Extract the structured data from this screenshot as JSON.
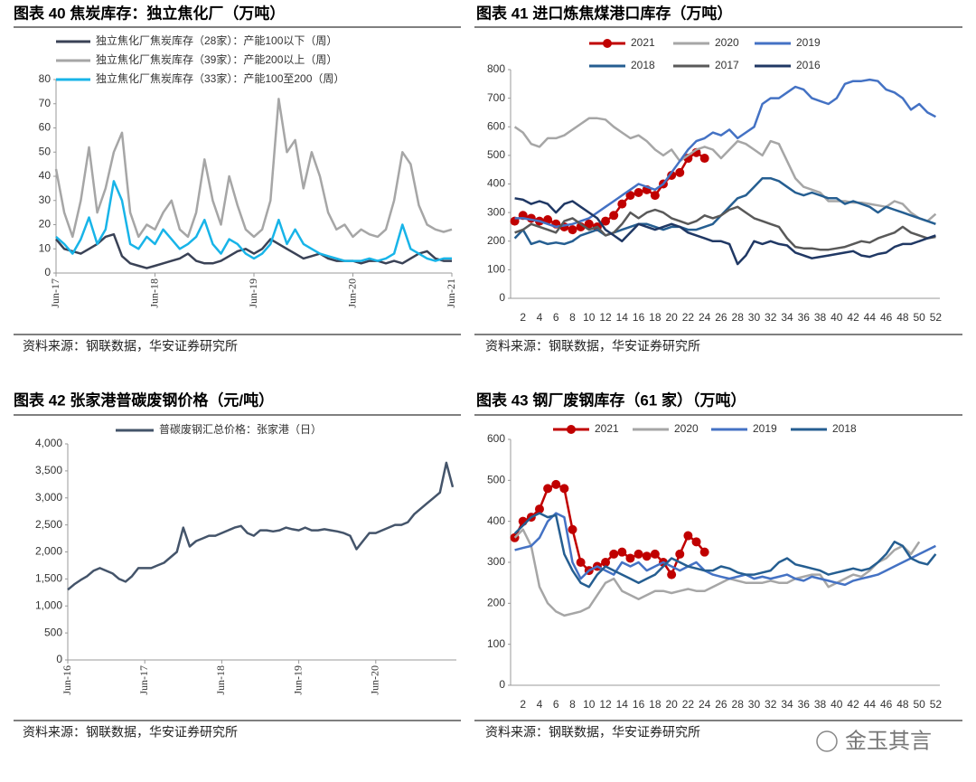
{
  "chart_data": [
    {
      "type": "line",
      "title": "图表 40 焦炭库存：独立焦化厂（万吨）",
      "source": "资料来源：钢联数据，华安证券研究所",
      "categories": [
        "Jun-17",
        null,
        null,
        null,
        null,
        null,
        null,
        null,
        null,
        null,
        null,
        null,
        "Jun-18",
        null,
        null,
        null,
        null,
        null,
        null,
        null,
        null,
        null,
        null,
        null,
        "Jun-19",
        null,
        null,
        null,
        null,
        null,
        null,
        null,
        null,
        null,
        null,
        null,
        "Jun-20",
        null,
        null,
        null,
        null,
        null,
        null,
        null,
        null,
        null,
        null,
        null,
        "Jun-21"
      ],
      "series": [
        {
          "name": "独立焦化厂焦炭库存（28家）：产能100以下（周）",
          "color": "#3a4256",
          "values": [
            14,
            10,
            9,
            8,
            10,
            12,
            15,
            16,
            7,
            4,
            3,
            2,
            3,
            4,
            5,
            6,
            8,
            5,
            4,
            4,
            5,
            7,
            9,
            10,
            8,
            10,
            14,
            12,
            10,
            8,
            6,
            7,
            8,
            6,
            5,
            5,
            5,
            4,
            5,
            5,
            4,
            5,
            4,
            6,
            8,
            9,
            6,
            5,
            5
          ]
        },
        {
          "name": "独立焦化厂焦炭库存（39家）：产能200以上（周）",
          "color": "#a6a6a6",
          "values": [
            43,
            25,
            15,
            30,
            52,
            25,
            35,
            50,
            58,
            25,
            15,
            20,
            18,
            25,
            30,
            18,
            15,
            25,
            47,
            30,
            20,
            40,
            28,
            18,
            15,
            18,
            30,
            72,
            50,
            55,
            35,
            50,
            40,
            25,
            18,
            20,
            15,
            18,
            16,
            15,
            18,
            30,
            50,
            45,
            28,
            20,
            18,
            17,
            18
          ]
        },
        {
          "name": "独立焦化厂焦炭库存（33家）：产能100至200（周）",
          "color": "#18b4e8",
          "values": [
            15,
            12,
            8,
            14,
            23,
            12,
            18,
            38,
            30,
            12,
            10,
            15,
            12,
            18,
            14,
            10,
            12,
            15,
            22,
            12,
            8,
            14,
            12,
            8,
            6,
            8,
            12,
            22,
            12,
            18,
            12,
            10,
            8,
            7,
            6,
            5,
            5,
            5,
            6,
            5,
            6,
            8,
            20,
            10,
            8,
            6,
            5,
            6,
            6
          ]
        }
      ],
      "ylim": [
        0,
        80
      ],
      "yticks": [
        0,
        10,
        20,
        30,
        40,
        50,
        60,
        70,
        80
      ]
    },
    {
      "type": "line",
      "title": "图表 41 进口炼焦煤港口库存（万吨）",
      "source": "资料来源：钢联数据，华安证券研究所",
      "categories": [
        null,
        2,
        null,
        4,
        null,
        6,
        null,
        8,
        null,
        10,
        null,
        12,
        null,
        14,
        null,
        16,
        null,
        18,
        null,
        20,
        null,
        22,
        null,
        24,
        null,
        26,
        null,
        28,
        null,
        30,
        null,
        32,
        null,
        34,
        null,
        36,
        null,
        38,
        null,
        40,
        null,
        42,
        null,
        44,
        null,
        46,
        null,
        48,
        null,
        50,
        null,
        52
      ],
      "series": [
        {
          "name": "2021",
          "color": "#c00000",
          "markers": true,
          "values": [
            270,
            290,
            280,
            270,
            275,
            260,
            250,
            240,
            250,
            260,
            250,
            270,
            290,
            330,
            360,
            370,
            380,
            360,
            400,
            430,
            440,
            490,
            510,
            490,
            null,
            null,
            null,
            null,
            null,
            null,
            null,
            null,
            null,
            null,
            null,
            null,
            null,
            null,
            null,
            null,
            null,
            null,
            null,
            null,
            null,
            null,
            null,
            null,
            null,
            null,
            null,
            null
          ]
        },
        {
          "name": "2020",
          "color": "#a6a6a6",
          "values": [
            600,
            580,
            540,
            530,
            560,
            560,
            570,
            590,
            610,
            630,
            630,
            625,
            600,
            580,
            560,
            570,
            550,
            520,
            500,
            520,
            480,
            500,
            520,
            530,
            520,
            490,
            520,
            550,
            540,
            520,
            500,
            550,
            540,
            480,
            420,
            390,
            380,
            370,
            340,
            340,
            340,
            335,
            335,
            330,
            325,
            320,
            340,
            330,
            300,
            280,
            270,
            295
          ]
        },
        {
          "name": "2019",
          "color": "#4472c4",
          "values": [
            280,
            280,
            275,
            270,
            260,
            250,
            255,
            260,
            270,
            280,
            300,
            320,
            340,
            360,
            380,
            400,
            390,
            380,
            400,
            440,
            480,
            520,
            550,
            560,
            580,
            570,
            590,
            560,
            580,
            600,
            680,
            700,
            700,
            720,
            740,
            730,
            700,
            690,
            680,
            700,
            750,
            760,
            760,
            765,
            760,
            730,
            720,
            700,
            660,
            680,
            650,
            635
          ]
        },
        {
          "name": "2018",
          "color": "#255e91",
          "values": [
            210,
            240,
            190,
            200,
            190,
            195,
            190,
            200,
            220,
            230,
            240,
            220,
            230,
            240,
            250,
            260,
            260,
            250,
            240,
            250,
            250,
            240,
            240,
            250,
            260,
            290,
            320,
            350,
            360,
            390,
            420,
            420,
            410,
            390,
            370,
            360,
            370,
            360,
            350,
            350,
            330,
            340,
            330,
            320,
            300,
            320,
            310,
            300,
            290,
            280,
            270,
            260
          ]
        },
        {
          "name": "2017",
          "color": "#595959",
          "values": [
            230,
            240,
            260,
            250,
            240,
            230,
            270,
            280,
            260,
            240,
            250,
            220,
            230,
            260,
            300,
            280,
            300,
            310,
            300,
            280,
            270,
            260,
            270,
            290,
            280,
            290,
            310,
            320,
            300,
            280,
            270,
            260,
            250,
            210,
            180,
            175,
            175,
            170,
            170,
            175,
            180,
            190,
            200,
            195,
            210,
            220,
            230,
            250,
            230,
            220,
            210,
            215
          ]
        },
        {
          "name": "2016",
          "color": "#203864",
          "values": [
            350,
            345,
            330,
            340,
            330,
            300,
            330,
            340,
            320,
            300,
            280,
            240,
            220,
            200,
            230,
            260,
            250,
            240,
            250,
            260,
            250,
            230,
            220,
            210,
            200,
            200,
            190,
            120,
            150,
            200,
            190,
            200,
            190,
            185,
            160,
            150,
            140,
            145,
            150,
            155,
            160,
            165,
            150,
            145,
            155,
            160,
            180,
            190,
            190,
            200,
            210,
            220
          ]
        }
      ],
      "ylim": [
        0,
        800
      ],
      "yticks": [
        0,
        100,
        200,
        300,
        400,
        500,
        600,
        700,
        800
      ]
    },
    {
      "type": "line",
      "title": "图表 42 张家港普碳废钢价格（元/吨）",
      "source": "资料来源：钢联数据，华安证券研究所",
      "categories": [
        "Jun-16",
        null,
        null,
        null,
        null,
        null,
        null,
        null,
        null,
        null,
        null,
        null,
        "Jun-17",
        null,
        null,
        null,
        null,
        null,
        null,
        null,
        null,
        null,
        null,
        null,
        "Jun-18",
        null,
        null,
        null,
        null,
        null,
        null,
        null,
        null,
        null,
        null,
        null,
        "Jun-19",
        null,
        null,
        null,
        null,
        null,
        null,
        null,
        null,
        null,
        null,
        null,
        "Jun-20",
        null,
        null,
        null,
        null,
        null,
        null,
        null,
        null,
        null,
        null,
        null,
        null
      ],
      "series": [
        {
          "name": "普碳废钢汇总价格：张家港（日）",
          "color": "#44546a",
          "values": [
            1300,
            1400,
            1480,
            1550,
            1650,
            1700,
            1650,
            1600,
            1500,
            1450,
            1550,
            1700,
            1700,
            1700,
            1750,
            1800,
            1900,
            2000,
            2450,
            2100,
            2200,
            2250,
            2300,
            2300,
            2350,
            2400,
            2450,
            2480,
            2350,
            2300,
            2400,
            2400,
            2380,
            2400,
            2450,
            2420,
            2400,
            2450,
            2400,
            2400,
            2420,
            2400,
            2380,
            2350,
            2300,
            2050,
            2200,
            2350,
            2350,
            2400,
            2450,
            2500,
            2500,
            2550,
            2700,
            2800,
            2900,
            3000,
            3100,
            3650,
            3200
          ]
        }
      ],
      "ylim": [
        0,
        4000
      ],
      "yticks": [
        0,
        {
          "value": 500,
          "label": "500"
        },
        {
          "value": 1000,
          "label": "1,000"
        },
        {
          "value": 1500,
          "label": "1,500"
        },
        {
          "value": 2000,
          "label": "2,000"
        },
        {
          "value": 2500,
          "label": "2,500"
        },
        {
          "value": 3000,
          "label": "3,000"
        },
        {
          "value": 3500,
          "label": "3,500"
        },
        {
          "value": 4000,
          "label": "4,000"
        }
      ]
    },
    {
      "type": "line",
      "title": "图表 43 钢厂废钢库存（61 家）（万吨）",
      "source": "资料来源：钢联数据，华安证券研究所",
      "categories": [
        null,
        2,
        null,
        4,
        null,
        6,
        null,
        8,
        null,
        10,
        null,
        12,
        null,
        14,
        null,
        16,
        null,
        18,
        null,
        20,
        null,
        22,
        null,
        24,
        null,
        26,
        null,
        28,
        null,
        30,
        null,
        32,
        null,
        34,
        null,
        36,
        null,
        38,
        null,
        40,
        null,
        42,
        null,
        44,
        null,
        46,
        null,
        48,
        null,
        50,
        null,
        52
      ],
      "series": [
        {
          "name": "2021",
          "color": "#c00000",
          "markers": true,
          "values": [
            360,
            400,
            410,
            430,
            480,
            490,
            480,
            380,
            300,
            280,
            290,
            300,
            320,
            325,
            310,
            320,
            315,
            320,
            300,
            270,
            320,
            365,
            350,
            325,
            null,
            null,
            null,
            null,
            null,
            null,
            null,
            null,
            null,
            null,
            null,
            null,
            null,
            null,
            null,
            null,
            null,
            null,
            null,
            null,
            null,
            null,
            null,
            null,
            null,
            null,
            null,
            null
          ]
        },
        {
          "name": "2020",
          "color": "#a6a6a6",
          "values": [
            360,
            380,
            340,
            240,
            200,
            180,
            170,
            175,
            180,
            190,
            220,
            250,
            260,
            230,
            220,
            210,
            220,
            230,
            230,
            225,
            230,
            235,
            230,
            230,
            240,
            250,
            260,
            255,
            250,
            250,
            250,
            255,
            250,
            250,
            260,
            265,
            270,
            270,
            240,
            250,
            260,
            270,
            265,
            280,
            300,
            310,
            330,
            340,
            320,
            350,
            null,
            null
          ]
        },
        {
          "name": "2019",
          "color": "#4472c4",
          "values": [
            330,
            335,
            340,
            360,
            400,
            420,
            410,
            300,
            260,
            280,
            290,
            280,
            270,
            300,
            290,
            300,
            280,
            290,
            300,
            290,
            280,
            290,
            300,
            280,
            270,
            265,
            260,
            265,
            270,
            260,
            265,
            260,
            265,
            270,
            260,
            255,
            265,
            260,
            255,
            250,
            245,
            255,
            260,
            265,
            270,
            280,
            290,
            300,
            310,
            320,
            330,
            340
          ]
        },
        {
          "name": "2018",
          "color": "#255e91",
          "values": [
            370,
            390,
            410,
            420,
            410,
            415,
            320,
            280,
            250,
            240,
            270,
            290,
            280,
            270,
            260,
            250,
            260,
            270,
            290,
            310,
            300,
            290,
            285,
            280,
            280,
            290,
            285,
            275,
            270,
            270,
            275,
            280,
            300,
            310,
            295,
            290,
            285,
            280,
            270,
            275,
            280,
            285,
            280,
            285,
            300,
            320,
            350,
            340,
            310,
            300,
            295,
            320
          ]
        }
      ],
      "ylim": [
        0,
        600
      ],
      "yticks": [
        0,
        100,
        200,
        300,
        400,
        500,
        600
      ]
    }
  ],
  "watermark": "金玉其言"
}
